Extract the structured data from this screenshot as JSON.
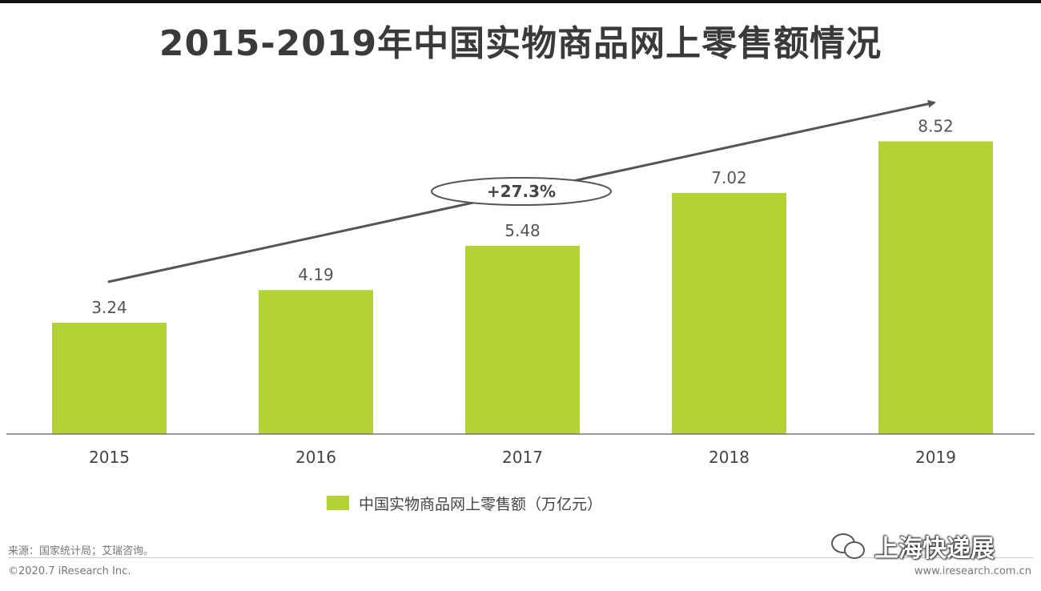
{
  "chart_data": {
    "type": "bar",
    "title": "2015-2019年中国实物商品网上零售额情况",
    "categories": [
      "2015",
      "2016",
      "2017",
      "2018",
      "2019"
    ],
    "series": [
      {
        "name": "中国实物商品网上零售额（万亿元）",
        "values": [
          3.24,
          4.19,
          5.48,
          7.02,
          8.52
        ]
      }
    ],
    "value_labels": [
      "3.24",
      "4.19",
      "5.48",
      "7.02",
      "8.52"
    ],
    "annotation": "+27.3%",
    "ylim": [
      0,
      10
    ],
    "bar_color": "#b3d236",
    "grid": false,
    "legend_position": "bottom",
    "xlabel": "",
    "ylabel": ""
  },
  "footer": {
    "source": "来源：国家统计局；艾瑞咨询。",
    "copyright": "©2020.7 iResearch Inc.",
    "website": "www.iresearch.com.cn"
  },
  "watermark": {
    "text": "上海快递展",
    "icon": "wechat-icon"
  }
}
